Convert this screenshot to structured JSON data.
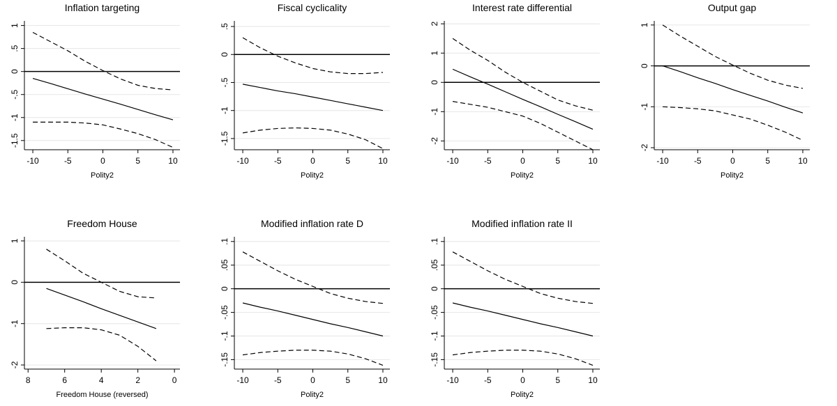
{
  "chart_data": [
    {
      "type": "line",
      "title": "Inflation targeting",
      "x_label": "Polity2",
      "x": [
        -10,
        -7.5,
        -5,
        -2.5,
        0,
        2.5,
        5,
        7.5,
        10
      ],
      "series": [
        {
          "style": "solid",
          "color": "#000000",
          "values": [
            -0.15,
            -0.26,
            -0.375,
            -0.49,
            -0.6,
            -0.71,
            -0.825,
            -0.94,
            -1.05
          ]
        },
        {
          "style": "dashed",
          "color": "#000000",
          "values": [
            0.85,
            0.65,
            0.45,
            0.22,
            0.02,
            -0.16,
            -0.3,
            -0.37,
            -0.4
          ]
        },
        {
          "style": "dashed",
          "color": "#000000",
          "values": [
            -1.1,
            -1.1,
            -1.1,
            -1.12,
            -1.16,
            -1.25,
            -1.35,
            -1.48,
            -1.65
          ]
        }
      ],
      "refline": 0,
      "xlim": [
        -11.2,
        11
      ],
      "xticks": [
        -10,
        -5,
        0,
        5,
        10
      ],
      "ylim": [
        -1.7,
        1.1
      ],
      "yticks": [
        1,
        {
          "value": 0.5,
          "label": ".5"
        },
        0,
        {
          "value": -0.5,
          "label": "-.5"
        },
        -1,
        {
          "value": -1.5,
          "label": "-1.5"
        }
      ],
      "grid": true
    },
    {
      "type": "line",
      "title": "Fiscal cyclicality",
      "x_label": "Polity2",
      "x": [
        -10,
        -7.5,
        -5,
        -2.5,
        0,
        2.5,
        5,
        7.5,
        10
      ],
      "series": [
        {
          "style": "solid",
          "color": "#000000",
          "values": [
            -0.53,
            -0.59,
            -0.65,
            -0.7,
            -0.76,
            -0.82,
            -0.88,
            -0.94,
            -1.0
          ]
        },
        {
          "style": "dashed",
          "color": "#000000",
          "values": [
            0.3,
            0.12,
            -0.03,
            -0.15,
            -0.25,
            -0.31,
            -0.34,
            -0.34,
            -0.32
          ]
        },
        {
          "style": "dashed",
          "color": "#000000",
          "values": [
            -1.4,
            -1.35,
            -1.32,
            -1.31,
            -1.32,
            -1.35,
            -1.42,
            -1.52,
            -1.68
          ]
        }
      ],
      "refline": 0,
      "xlim": [
        -11.2,
        11
      ],
      "xticks": [
        -10,
        -5,
        0,
        5,
        10
      ],
      "ylim": [
        -1.7,
        0.6
      ],
      "yticks": [
        {
          "value": 0.5,
          "label": ".5"
        },
        0,
        {
          "value": -0.5,
          "label": "-.5"
        },
        -1,
        {
          "value": -1.5,
          "label": "-1.5"
        }
      ],
      "grid": true
    },
    {
      "type": "line",
      "title": "Interest rate differential",
      "x_label": "Polity2",
      "x": [
        -10,
        -7.5,
        -5,
        -2.5,
        0,
        2.5,
        5,
        7.5,
        10
      ],
      "series": [
        {
          "style": "solid",
          "color": "#000000",
          "values": [
            0.45,
            0.19,
            -0.06,
            -0.32,
            -0.58,
            -0.83,
            -1.09,
            -1.34,
            -1.6
          ]
        },
        {
          "style": "dashed",
          "color": "#000000",
          "values": [
            1.5,
            1.1,
            0.75,
            0.35,
            0,
            -0.3,
            -0.6,
            -0.8,
            -0.95
          ]
        },
        {
          "style": "dashed",
          "color": "#000000",
          "values": [
            -0.65,
            -0.75,
            -0.85,
            -1.0,
            -1.15,
            -1.4,
            -1.7,
            -2.0,
            -2.3
          ]
        }
      ],
      "refline": 0,
      "xlim": [
        -11.2,
        11
      ],
      "xticks": [
        -10,
        -5,
        0,
        5,
        10
      ],
      "ylim": [
        -2.3,
        2.1
      ],
      "yticks": [
        2,
        1,
        0,
        -1,
        -2
      ],
      "grid": true
    },
    {
      "type": "line",
      "title": "Output gap",
      "x_label": "Polity2",
      "x": [
        -10,
        -7.5,
        -5,
        -2.5,
        0,
        2.5,
        5,
        7.5,
        10
      ],
      "series": [
        {
          "style": "solid",
          "color": "#000000",
          "values": [
            0,
            -0.14,
            -0.29,
            -0.43,
            -0.58,
            -0.72,
            -0.86,
            -1.01,
            -1.15
          ]
        },
        {
          "style": "dashed",
          "color": "#000000",
          "values": [
            1.0,
            0.73,
            0.48,
            0.23,
            0.02,
            -0.18,
            -0.35,
            -0.47,
            -0.55
          ]
        },
        {
          "style": "dashed",
          "color": "#000000",
          "values": [
            -1.0,
            -1.02,
            -1.05,
            -1.1,
            -1.2,
            -1.3,
            -1.45,
            -1.62,
            -1.82
          ]
        }
      ],
      "refline": 0,
      "xlim": [
        -11.2,
        11
      ],
      "xticks": [
        -10,
        -5,
        0,
        5,
        10
      ],
      "ylim": [
        -2.05,
        1.1
      ],
      "yticks": [
        1,
        0,
        -1,
        -2
      ],
      "grid": true
    },
    {
      "type": "line",
      "title": "Freedom House",
      "x_label": "Freedom House (reversed)",
      "x": [
        7,
        6,
        5,
        4,
        3,
        2,
        1
      ],
      "series": [
        {
          "style": "solid",
          "color": "#000000",
          "values": [
            -0.15,
            -0.31,
            -0.47,
            -0.64,
            -0.8,
            -0.96,
            -1.12
          ]
        },
        {
          "style": "dashed",
          "color": "#000000",
          "values": [
            0.8,
            0.52,
            0.22,
            0.0,
            -0.22,
            -0.35,
            -0.38
          ]
        },
        {
          "style": "dashed",
          "color": "#000000",
          "values": [
            -1.12,
            -1.1,
            -1.1,
            -1.15,
            -1.28,
            -1.55,
            -1.9
          ]
        }
      ],
      "refline": 0,
      "xlim": [
        8.2,
        -0.3
      ],
      "xticks": [
        8,
        6,
        4,
        2,
        0
      ],
      "ylim": [
        -2.1,
        1.1
      ],
      "yticks": [
        1,
        0,
        -1,
        -2
      ],
      "grid": true
    },
    {
      "type": "line",
      "title": "Modified inflation rate D",
      "x_label": "Polity2",
      "x": [
        -10,
        -7.5,
        -5,
        -2.5,
        0,
        2.5,
        5,
        7.5,
        10
      ],
      "series": [
        {
          "style": "solid",
          "color": "#000000",
          "values": [
            -0.03,
            -0.039,
            -0.047,
            -0.056,
            -0.065,
            -0.074,
            -0.082,
            -0.091,
            -0.1
          ]
        },
        {
          "style": "dashed",
          "color": "#000000",
          "values": [
            0.078,
            0.058,
            0.038,
            0.02,
            0.005,
            -0.01,
            -0.02,
            -0.027,
            -0.031
          ]
        },
        {
          "style": "dashed",
          "color": "#000000",
          "values": [
            -0.14,
            -0.135,
            -0.132,
            -0.13,
            -0.13,
            -0.132,
            -0.138,
            -0.148,
            -0.162
          ]
        }
      ],
      "refline": 0,
      "xlim": [
        -11.2,
        11
      ],
      "xticks": [
        -10,
        -5,
        0,
        5,
        10
      ],
      "ylim": [
        -0.17,
        0.11
      ],
      "yticks": [
        {
          "value": 0.1,
          "label": ".1"
        },
        {
          "value": 0.05,
          "label": ".05"
        },
        0,
        {
          "value": -0.05,
          "label": "-.05"
        },
        {
          "value": -0.1,
          "label": "-.1"
        },
        {
          "value": -0.15,
          "label": "-.15"
        }
      ],
      "grid": true
    },
    {
      "type": "line",
      "title": "Modified inflation rate II",
      "x_label": "Polity2",
      "x": [
        -10,
        -7.5,
        -5,
        -2.5,
        0,
        2.5,
        5,
        7.5,
        10
      ],
      "series": [
        {
          "style": "solid",
          "color": "#000000",
          "values": [
            -0.03,
            -0.039,
            -0.047,
            -0.056,
            -0.065,
            -0.074,
            -0.082,
            -0.091,
            -0.1
          ]
        },
        {
          "style": "dashed",
          "color": "#000000",
          "values": [
            0.078,
            0.058,
            0.038,
            0.02,
            0.005,
            -0.01,
            -0.02,
            -0.027,
            -0.031
          ]
        },
        {
          "style": "dashed",
          "color": "#000000",
          "values": [
            -0.14,
            -0.135,
            -0.132,
            -0.13,
            -0.13,
            -0.132,
            -0.138,
            -0.148,
            -0.162
          ]
        }
      ],
      "refline": 0,
      "xlim": [
        -11.2,
        11
      ],
      "xticks": [
        -10,
        -5,
        0,
        5,
        10
      ],
      "ylim": [
        -0.17,
        0.11
      ],
      "yticks": [
        {
          "value": 0.1,
          "label": ".1"
        },
        {
          "value": 0.05,
          "label": ".05"
        },
        0,
        {
          "value": -0.05,
          "label": "-.05"
        },
        {
          "value": -0.1,
          "label": "-.1"
        },
        {
          "value": -0.15,
          "label": "-.15"
        }
      ],
      "grid": true
    }
  ]
}
